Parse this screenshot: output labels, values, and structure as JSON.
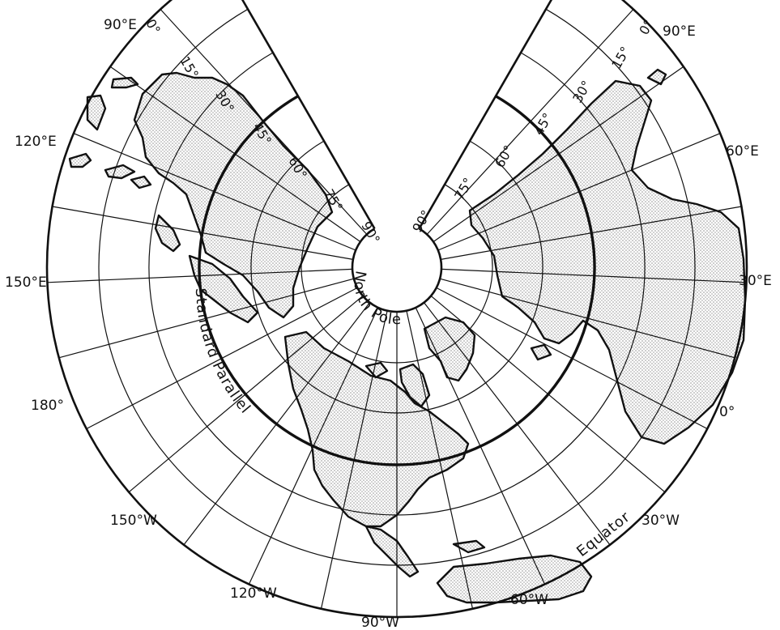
{
  "map": {
    "projection": "conic",
    "north_pole_label": "North Pole",
    "standard_parallel_label": "Standard Parallel",
    "equator_label": "Equator",
    "left_lobe": {
      "latitude_labels": [
        "0°",
        "15°",
        "30°",
        "45°",
        "60°",
        "75°",
        "90°"
      ],
      "longitude_labels": [
        "90°E",
        "120°E",
        "150°E",
        "180°",
        "150°W",
        "120°W",
        "90°W"
      ]
    },
    "right_lobe": {
      "latitude_labels": [
        "0°",
        "15°",
        "30°",
        "45°",
        "60°",
        "75°",
        "90°"
      ],
      "longitude_labels": [
        "90°E",
        "60°E",
        "30°E",
        "0°",
        "30°W",
        "60°W"
      ]
    },
    "colors": {
      "ink": "#111111",
      "land_stipple": "#9a9a9a",
      "background": "#ffffff"
    }
  }
}
